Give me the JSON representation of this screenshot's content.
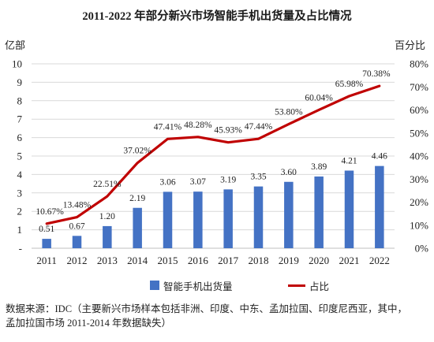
{
  "chart_data": {
    "type": "bar+line",
    "title": "2011-2022 年部分新兴市场智能手机出货量及占比情况",
    "left_axis_label": "亿部",
    "right_axis_label": "百分比",
    "categories": [
      "2011",
      "2012",
      "2013",
      "2014",
      "2015",
      "2016",
      "2017",
      "2018",
      "2019",
      "2020",
      "2021",
      "2022"
    ],
    "series": [
      {
        "name": "智能手机出货量",
        "type": "bar",
        "axis": "left",
        "values": [
          0.51,
          0.67,
          1.2,
          2.19,
          3.06,
          3.07,
          3.19,
          3.35,
          3.6,
          3.89,
          4.21,
          4.46
        ],
        "labels": [
          "0.51",
          "0.67",
          "1.20",
          "2.19",
          "3.06",
          "3.07",
          "3.19",
          "3.35",
          "3.60",
          "3.89",
          "4.21",
          "4.46"
        ]
      },
      {
        "name": "占比",
        "type": "line",
        "axis": "right",
        "values": [
          10.67,
          13.48,
          22.51,
          37.02,
          47.41,
          48.28,
          45.93,
          47.44,
          53.8,
          60.04,
          65.98,
          70.38
        ],
        "labels": [
          "10.67%",
          "13.48%",
          "22.51%",
          "37.02%",
          "47.41%",
          "48.28%",
          "45.93%",
          "47.44%",
          "53.80%",
          "60.04%",
          "65.98%",
          "70.38%"
        ]
      }
    ],
    "left_ticks": [
      "-",
      "1",
      "2",
      "3",
      "4",
      "5",
      "6",
      "7",
      "8",
      "9",
      "10"
    ],
    "right_ticks": [
      "0%",
      "10%",
      "20%",
      "30%",
      "40%",
      "50%",
      "60%",
      "70%",
      "80%"
    ],
    "ylim_left": [
      0,
      10
    ],
    "ylim_right": [
      0,
      80
    ],
    "grid": true,
    "legend": "bottom",
    "colors": {
      "bar": "#4472c4",
      "line": "#c00000",
      "grid": "#d9d9d9"
    }
  },
  "note": {
    "line1": "数据来源：IDC（主要新兴市场样本包括非洲、印度、中东、孟加拉国、印度尼西亚，其中，",
    "line2": "孟加拉国市场 2011-2014 年数据缺失）"
  }
}
